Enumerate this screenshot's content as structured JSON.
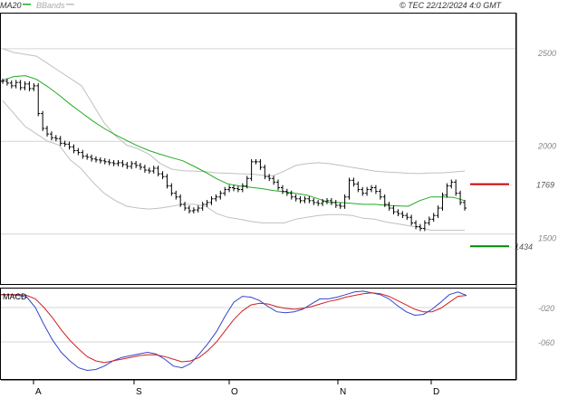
{
  "header": {
    "ma_label": "MA20",
    "bbands_label": "BBands",
    "copyright": "© TEC 22/12/2024 4:0 GMT"
  },
  "macd_panel": {
    "label": "MACD"
  },
  "colors": {
    "price": "#000000",
    "ma": "#22aa22",
    "bands": "#c0c0c0",
    "resistance": "#cc0000",
    "support": "#008800",
    "macd": "#3344cc",
    "signal": "#cc2222",
    "grid": "#d4d4d4",
    "frame": "#000000"
  },
  "chart_data": [
    {
      "type": "ohlc",
      "title": "",
      "y_axis_ticks": [
        "2500",
        "2000",
        "1500"
      ],
      "ylim": [
        1230,
        2690
      ],
      "x_months": [
        "A",
        "S",
        "O",
        "N",
        "D"
      ],
      "levels": [
        {
          "name": "resistance",
          "label": "1769",
          "value": 1769
        },
        {
          "name": "support",
          "label": "1434",
          "value": 1434
        }
      ],
      "close_series": [
        2325,
        2315,
        2300,
        2318,
        2290,
        2310,
        2285,
        2300,
        2150,
        2070,
        2040,
        2020,
        2015,
        1990,
        1985,
        1970,
        1950,
        1940,
        1920,
        1915,
        1905,
        1900,
        1895,
        1890,
        1885,
        1880,
        1885,
        1875,
        1865,
        1880,
        1870,
        1860,
        1845,
        1840,
        1855,
        1825,
        1810,
        1760,
        1720,
        1700,
        1660,
        1640,
        1625,
        1630,
        1640,
        1660,
        1670,
        1690,
        1700,
        1720,
        1740,
        1750,
        1745,
        1740,
        1760,
        1800,
        1890,
        1890,
        1860,
        1810,
        1800,
        1780,
        1750,
        1730,
        1720,
        1700,
        1690,
        1680,
        1690,
        1680,
        1670,
        1665,
        1675,
        1680,
        1670,
        1655,
        1650,
        1700,
        1790,
        1770,
        1740,
        1720,
        1740,
        1750,
        1730,
        1700,
        1660,
        1640,
        1620,
        1610,
        1600,
        1590,
        1560,
        1540,
        1530,
        1560,
        1580,
        1600,
        1640,
        1710,
        1760,
        1780,
        1720,
        1670,
        1640
      ],
      "ma20_series": [
        2330,
        2350,
        2355,
        2335,
        2295,
        2250,
        2200,
        2155,
        2110,
        2070,
        2035,
        2005,
        1975,
        1950,
        1930,
        1912,
        1895,
        1865,
        1833,
        1798,
        1770,
        1760,
        1752,
        1745,
        1735,
        1728,
        1720,
        1710,
        1690,
        1670,
        1670,
        1665,
        1660,
        1660,
        1655,
        1652,
        1650,
        1680,
        1700,
        1700,
        1698,
        1680
      ],
      "bb_upper": [
        2500,
        2480,
        2470,
        2460,
        2420,
        2380,
        2340,
        2300,
        2200,
        2100,
        2030,
        1980,
        1960,
        1930,
        1880,
        1850,
        1842,
        1840,
        1836,
        1830,
        1828,
        1825,
        1824,
        1818,
        1815,
        1840,
        1870,
        1880,
        1885,
        1880,
        1870,
        1860,
        1850,
        1840,
        1835,
        1832,
        1828,
        1826,
        1830,
        1830,
        1835,
        1840
      ],
      "bb_lower": [
        2220,
        2150,
        2080,
        2040,
        2000,
        1980,
        1900,
        1850,
        1780,
        1720,
        1680,
        1650,
        1640,
        1635,
        1640,
        1650,
        1660,
        1660,
        1650,
        1610,
        1590,
        1580,
        1568,
        1560,
        1560,
        1560,
        1580,
        1590,
        1600,
        1605,
        1605,
        1600,
        1585,
        1580,
        1565,
        1555,
        1545,
        1535,
        1520,
        1520,
        1520,
        1520
      ]
    },
    {
      "type": "line",
      "title": "",
      "y_axis_ticks": [
        "-020",
        "-060"
      ],
      "ylim": [
        -103,
        2
      ],
      "series": [
        {
          "name": "MACD",
          "values": [
            -5,
            -5,
            -6,
            -8,
            -20,
            -40,
            -58,
            -72,
            -82,
            -90,
            -93,
            -92,
            -88,
            -82,
            -78,
            -76,
            -74,
            -72,
            -74,
            -80,
            -88,
            -90,
            -85,
            -74,
            -62,
            -48,
            -30,
            -14,
            -7,
            -8,
            -12,
            -19,
            -25,
            -26,
            -25,
            -22,
            -16,
            -10,
            -10,
            -8,
            -5,
            -2,
            -1,
            -3,
            -5,
            -10,
            -18,
            -25,
            -29,
            -28,
            -22,
            -14,
            -5,
            -2,
            -6
          ]
        },
        {
          "name": "Signal",
          "values": [
            -5,
            -5,
            -5,
            -6,
            -10,
            -20,
            -32,
            -46,
            -58,
            -68,
            -77,
            -82,
            -84,
            -82,
            -80,
            -78,
            -76,
            -75,
            -75,
            -77,
            -80,
            -83,
            -82,
            -78,
            -70,
            -60,
            -47,
            -34,
            -24,
            -17,
            -15,
            -16,
            -19,
            -21,
            -22,
            -21,
            -19,
            -16,
            -13,
            -11,
            -8,
            -6,
            -4,
            -3,
            -4,
            -7,
            -12,
            -17,
            -22,
            -25,
            -25,
            -21,
            -14,
            -7,
            -6
          ]
        }
      ]
    }
  ]
}
